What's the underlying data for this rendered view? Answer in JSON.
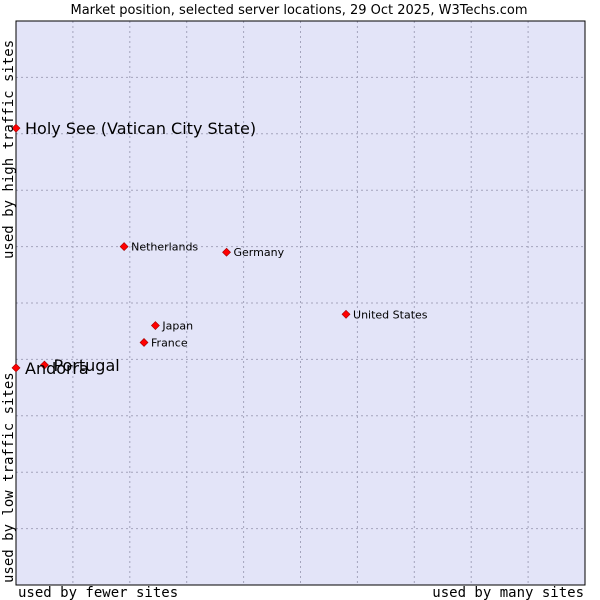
{
  "chart_data": {
    "type": "scatter",
    "title": "Market position, selected server locations, 29 Oct 2025, W3Techs.com",
    "xlabel_left": "used by fewer sites",
    "xlabel_right": "used by many sites",
    "ylabel_bottom": "used by low traffic sites",
    "ylabel_top": "used by high traffic sites",
    "xlim": [
      0,
      10
    ],
    "ylim": [
      0,
      10
    ],
    "grid": true,
    "colors": {
      "plot_bg": "#e3e4f8",
      "grid": "#a4a4bc",
      "marker": "#ff0000",
      "marker_stroke": "#a00000",
      "frame": "#000000"
    },
    "points": [
      {
        "label": "Holy See (Vatican City State)",
        "x": 0.0,
        "y": 8.1,
        "emphasis": true
      },
      {
        "label": "Netherlands",
        "x": 1.9,
        "y": 6.0,
        "emphasis": false
      },
      {
        "label": "Germany",
        "x": 3.7,
        "y": 5.9,
        "emphasis": false
      },
      {
        "label": "United States",
        "x": 5.8,
        "y": 4.8,
        "emphasis": false
      },
      {
        "label": "Japan",
        "x": 2.45,
        "y": 4.6,
        "emphasis": false
      },
      {
        "label": "France",
        "x": 2.25,
        "y": 4.3,
        "emphasis": false
      },
      {
        "label": "Portugal",
        "x": 0.5,
        "y": 3.9,
        "emphasis": true
      },
      {
        "label": "Andorra",
        "x": 0.0,
        "y": 3.85,
        "emphasis": true
      }
    ]
  }
}
